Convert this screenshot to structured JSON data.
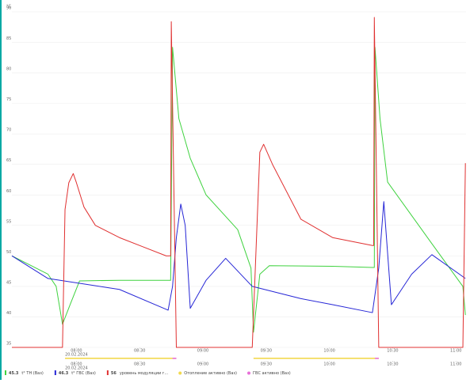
{
  "chart_data": {
    "type": "line",
    "y_unit": "°C",
    "xlim": [
      7.49,
      11.08
    ],
    "ylim": [
      35,
      90
    ],
    "yticks": [
      35,
      40,
      45,
      50,
      55,
      60,
      65,
      70,
      75,
      80,
      85,
      90
    ],
    "xticks": [
      {
        "value": 8,
        "label": "08:00"
      },
      {
        "value": 8.5,
        "label": "08:30"
      },
      {
        "value": 9,
        "label": "09:00"
      },
      {
        "value": 9.5,
        "label": "09:30"
      },
      {
        "value": 10,
        "label": "10:00"
      },
      {
        "value": 10.5,
        "label": "10:30"
      },
      {
        "value": 11,
        "label": "11:00"
      }
    ],
    "date_label": "20.02.2024",
    "grid": true,
    "series": [
      {
        "name": "t° ТН (Ваз)",
        "state": "45.3",
        "color": "#3fd23f",
        "x": [
          7.49,
          7.775,
          7.84,
          7.89,
          7.95,
          8.025,
          8.34,
          8.71,
          8.745,
          8.76,
          8.81,
          8.9,
          9.025,
          9.275,
          9.38,
          9.4,
          9.45,
          9.525,
          10.025,
          10.34,
          10.355,
          10.36,
          10.4,
          10.46,
          10.81,
          11.055,
          11.075
        ],
        "values": [
          50,
          47,
          45,
          38.8,
          42,
          45.9,
          46,
          46,
          46,
          84.2,
          72.5,
          66,
          60,
          54.3,
          48,
          37.5,
          47,
          48.4,
          48.3,
          48.1,
          48.1,
          84.2,
          72.5,
          62.1,
          52,
          45,
          40.3
        ]
      },
      {
        "name": "t° ГВС (Ваз)",
        "state": "46.3",
        "color": "#2626d6",
        "x": [
          7.49,
          7.775,
          8.34,
          8.725,
          8.76,
          8.79,
          8.825,
          8.86,
          8.9,
          9.025,
          9.18,
          9.39,
          9.775,
          10.025,
          10.34,
          10.39,
          10.43,
          10.49,
          10.65,
          10.81,
          11.075
        ],
        "values": [
          50,
          46.3,
          44.5,
          41.1,
          45,
          53,
          58.5,
          55,
          41.4,
          46,
          49.6,
          45,
          43,
          42,
          40.7,
          48,
          58.9,
          42,
          47,
          50.2,
          46.3
        ]
      },
      {
        "name": "уровень модуляции г...",
        "state": "56",
        "color": "#e03030",
        "x": [
          7.49,
          7.89,
          7.91,
          7.94,
          7.975,
          8.0,
          8.06,
          8.15,
          8.34,
          8.525,
          8.71,
          8.745,
          8.75,
          8.79,
          9.39,
          9.45,
          9.48,
          9.55,
          9.775,
          10.025,
          10.34,
          10.35,
          10.355,
          10.39,
          11.055,
          11.075
        ],
        "values": [
          35,
          35,
          57.6,
          62,
          63.5,
          62,
          58,
          55,
          53,
          51.5,
          50,
          50,
          88.4,
          35,
          35,
          67,
          68.3,
          65,
          56,
          53,
          51.7,
          51.7,
          89.1,
          35,
          35,
          65.2
        ]
      }
    ],
    "timeline": [
      {
        "name": "Отопление активно (Ваз)",
        "color": "#f2d94e",
        "spans": [
          [
            7.91,
            8.79
          ],
          [
            9.4,
            10.39
          ]
        ]
      },
      {
        "name": "ГВС активно (Ваз)",
        "color": "#e86fd8",
        "spans": [
          [
            8.76,
            8.79
          ],
          [
            10.36,
            10.39
          ]
        ]
      }
    ]
  }
}
